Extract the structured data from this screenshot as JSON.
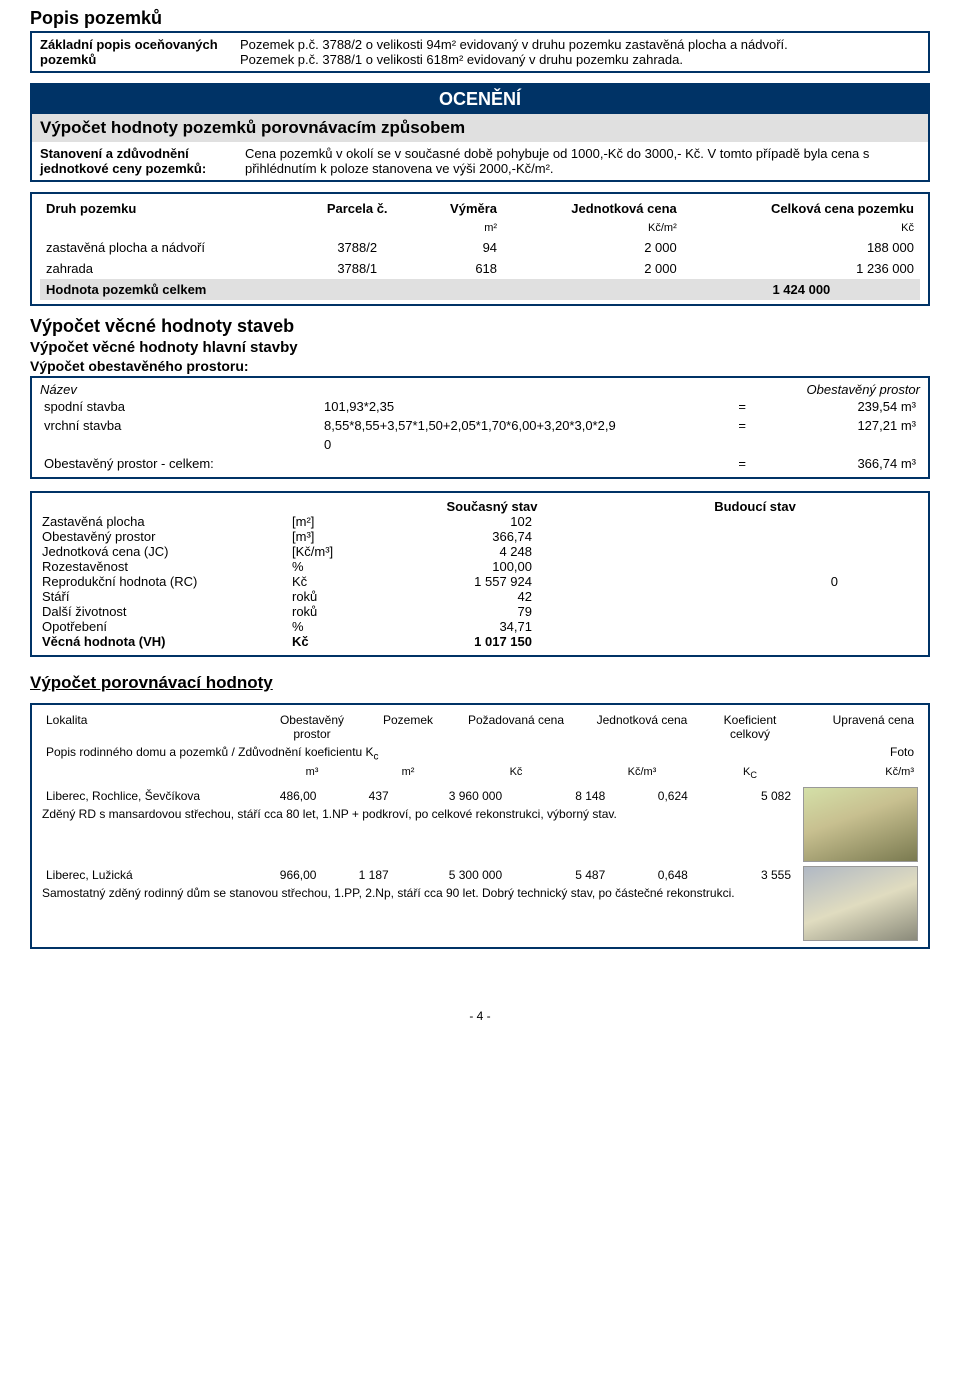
{
  "popis": {
    "title": "Popis pozemků",
    "label": "Základní popis oceňovaných pozemků",
    "line1": "Pozemek p.č. 3788/2 o velikosti 94m² evidovaný v druhu pozemku zastavěná plocha a nádvoří.",
    "line2": "Pozemek p.č. 3788/1 o velikosti 618m² evidovaný v druhu pozemku zahrada."
  },
  "oceneni": {
    "banner": "OCENĚNÍ",
    "calc_title": "Výpočet hodnoty pozemků porovnávacím způsobem",
    "justif_label": "Stanovení a zdůvodnění jednotkové ceny pozemků:",
    "justif_text": "Cena pozemků v okolí se v současné době pohybuje od 1000,-Kč do 3000,- Kč. V tomto případě byla cena s přihlédnutím k poloze stanovena ve výši 2000,-Kč/m²."
  },
  "land_table": {
    "headers": [
      "Druh pozemku",
      "Parcela č.",
      "Výměra",
      "Jednotková cena",
      "Celková cena pozemku"
    ],
    "units": [
      "",
      "",
      "m²",
      "Kč/m²",
      "Kč"
    ],
    "rows": [
      {
        "druh": "zastavěná plocha a nádvoří",
        "parcela": "3788/2",
        "vymera": "94",
        "jc": "2 000",
        "cena": "188 000"
      },
      {
        "druh": "zahrada",
        "parcela": "3788/1",
        "vymera": "618",
        "jc": "2 000",
        "cena": "1 236 000"
      }
    ],
    "total_label": "Hodnota pozemků celkem",
    "total_value": "1 424 000"
  },
  "vecna": {
    "h1": "Výpočet věcné hodnoty staveb",
    "h2": "Výpočet věcné hodnoty hlavní stavby",
    "h3": "Výpočet obestavěného prostoru:",
    "name_head": "Název",
    "op_head": "Obestavěný prostor",
    "rows": [
      {
        "name": "spodní stavba",
        "expr": "101,93*2,35",
        "eq": "=",
        "val": "239,54 m³"
      },
      {
        "name": "vrchní stavba",
        "expr": "8,55*8,55+3,57*1,50+2,05*1,70*6,00+3,20*3,0*2,9",
        "eq": "=",
        "val": "127,21 m³"
      },
      {
        "name": "",
        "expr": "0",
        "eq": "",
        "val": ""
      }
    ],
    "total_label": "Obestavěný prostor - celkem:",
    "total_eq": "=",
    "total_val": "366,74 m³"
  },
  "state": {
    "head_current": "Současný stav",
    "head_future": "Budoucí stav",
    "rows": [
      {
        "l": "Zastavěná plocha",
        "u": "[m²]",
        "v": "102",
        "f": ""
      },
      {
        "l": "Obestavěný prostor",
        "u": "[m³]",
        "v": "366,74",
        "f": ""
      },
      {
        "l": "Jednotková cena (JC)",
        "u": "[Kč/m³]",
        "v": "4 248",
        "f": ""
      },
      {
        "l": "Rozestavěnost",
        "u": "%",
        "v": "100,00",
        "f": ""
      },
      {
        "l": "Reprodukční hodnota (RC)",
        "u": "Kč",
        "v": "1 557 924",
        "f": "0"
      },
      {
        "l": "Stáří",
        "u": "roků",
        "v": "42",
        "f": ""
      },
      {
        "l": "Další životnost",
        "u": "roků",
        "v": "79",
        "f": ""
      },
      {
        "l": "Opotřebení",
        "u": "%",
        "v": "34,71",
        "f": ""
      }
    ],
    "final": {
      "l": "Věcná hodnota (VH)",
      "u": "Kč",
      "v": "1 017 150",
      "f": ""
    }
  },
  "porov": {
    "title": "Výpočet porovnávací hodnoty",
    "headers": [
      "Lokalita",
      "Obestavěný prostor",
      "Pozemek",
      "Požadovaná cena",
      "Jednotková cena",
      "Koeficient celkový",
      "Upravená cena"
    ],
    "sub_label": "Popis rodinného domu a pozemků / Zdůvodnění koeficientu K",
    "sub_units": [
      "",
      "m³",
      "m²",
      "Kč",
      "Kč/m³",
      "K",
      "Kč/m³"
    ],
    "sub_k": "c",
    "sub_kc": "C",
    "foto": "Foto",
    "items": [
      {
        "lok": "Liberec, Rochlice, Ševčíkova",
        "op": "486,00",
        "poz": "437",
        "req": "3 960 000",
        "jc": "8 148",
        "k": "0,624",
        "upr": "5 082",
        "desc": "Zděný RD s mansardovou střechou, stáří cca 80 let, 1.NP + podkroví, po celkové rekonstrukci, výborný stav."
      },
      {
        "lok": "Liberec, Lužická",
        "op": "966,00",
        "poz": "1 187",
        "req": "5 300 000",
        "jc": "5 487",
        "k": "0,648",
        "upr": "3 555",
        "desc": "Samostatný zděný rodinný dům se stanovou střechou, 1.PP, 2.Np, stáří cca 90 let. Dobrý technický stav, po částečné rekonstrukci."
      }
    ]
  },
  "page": "- 4 -"
}
